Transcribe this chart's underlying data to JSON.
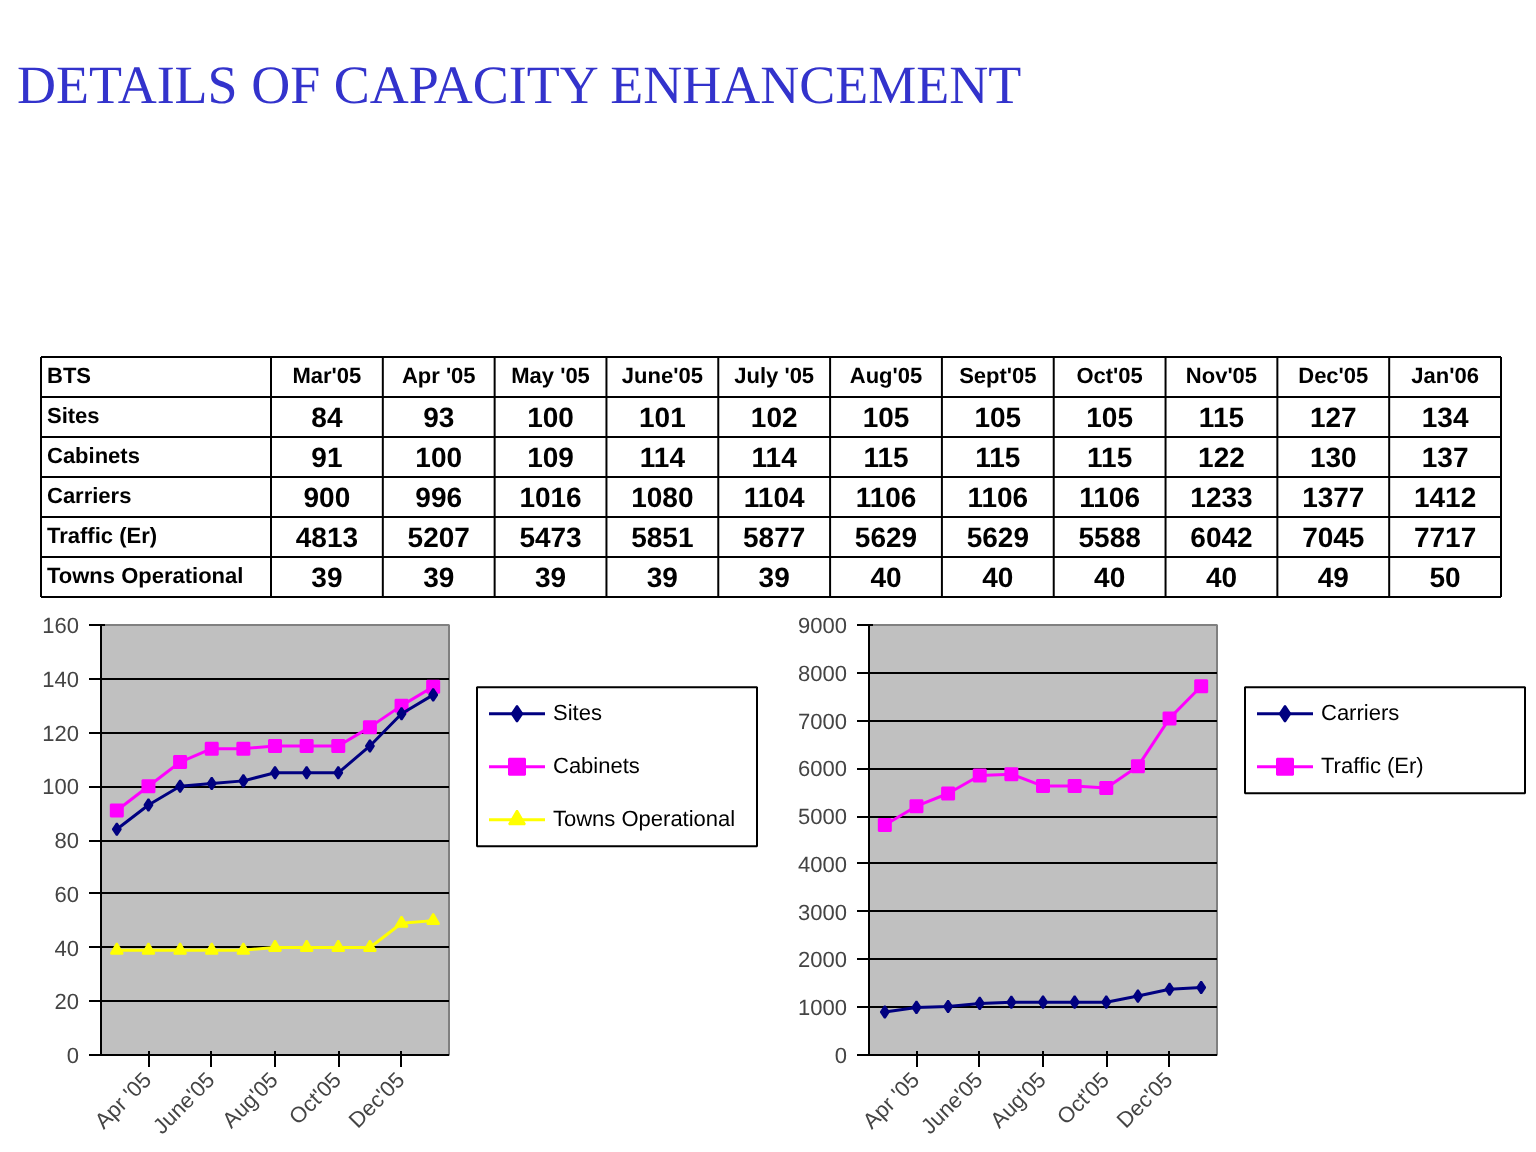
{
  "chart_data": [
    {
      "type": "other",
      "title": "DETAILS OF CAPACITY ENHANCEMENT",
      "legend_title": "BTS",
      "categories": [
        "Mar'05",
        "Apr '05",
        "May '05",
        "June'05",
        "July '05",
        "Aug'05",
        "Sept'05",
        "Oct'05",
        "Nov'05",
        "Dec'05",
        "Jan'06"
      ],
      "data_labels": true,
      "series": [
        {
          "name": "Sites",
          "values": [
            84,
            93,
            100,
            101,
            102,
            105,
            105,
            105,
            115,
            127,
            134
          ]
        },
        {
          "name": "Cabinets",
          "values": [
            91,
            100,
            109,
            114,
            114,
            115,
            115,
            115,
            122,
            130,
            137
          ]
        },
        {
          "name": "Carriers",
          "values": [
            900,
            996,
            1016,
            1080,
            1104,
            1106,
            1106,
            1106,
            1233,
            1377,
            1412
          ]
        },
        {
          "name": "Traffic (Er)",
          "values": [
            4813,
            5207,
            5473,
            5851,
            5877,
            5629,
            5629,
            5588,
            6042,
            7045,
            7717
          ]
        },
        {
          "name": "Towns Operational",
          "values": [
            39,
            39,
            39,
            39,
            39,
            40,
            40,
            40,
            40,
            49,
            50
          ]
        }
      ]
    },
    {
      "type": "line",
      "categories": [
        null,
        "Apr '05",
        null,
        "June'05",
        null,
        "Aug'05",
        null,
        "Oct'05",
        null,
        "Dec'05",
        null
      ],
      "ylim": [
        0,
        160
      ],
      "yticks": [
        0,
        20,
        40,
        60,
        80,
        100,
        120,
        140,
        160
      ],
      "grid": "y",
      "legend": "right",
      "series": [
        {
          "name": "Sites",
          "color": "#000080",
          "marker": "diamond",
          "values": [
            84,
            93,
            100,
            101,
            102,
            105,
            105,
            105,
            115,
            127,
            134
          ]
        },
        {
          "name": "Cabinets",
          "color": "#ff00ff",
          "marker": "square",
          "values": [
            91,
            100,
            109,
            114,
            114,
            115,
            115,
            115,
            122,
            130,
            137
          ]
        },
        {
          "name": "Towns Operational",
          "color": "#ffff00",
          "marker": "triangle",
          "values": [
            39,
            39,
            39,
            39,
            39,
            40,
            40,
            40,
            40,
            49,
            50
          ]
        }
      ]
    },
    {
      "type": "line",
      "categories": [
        null,
        "Apr '05",
        null,
        "June'05",
        null,
        "Aug'05",
        null,
        "Oct'05",
        null,
        "Dec'05",
        null
      ],
      "ylim": [
        0,
        9000
      ],
      "yticks": [
        0,
        1000,
        2000,
        3000,
        4000,
        5000,
        6000,
        7000,
        8000,
        9000
      ],
      "grid": "y",
      "legend": "right",
      "series": [
        {
          "name": "Carriers",
          "color": "#000080",
          "marker": "diamond",
          "values": [
            900,
            996,
            1016,
            1080,
            1104,
            1106,
            1106,
            1106,
            1233,
            1377,
            1412
          ]
        },
        {
          "name": "Traffic (Er)",
          "color": "#ff00ff",
          "marker": "square",
          "values": [
            4813,
            5207,
            5473,
            5851,
            5877,
            5629,
            5629,
            5588,
            6042,
            7045,
            7717
          ]
        }
      ]
    }
  ]
}
